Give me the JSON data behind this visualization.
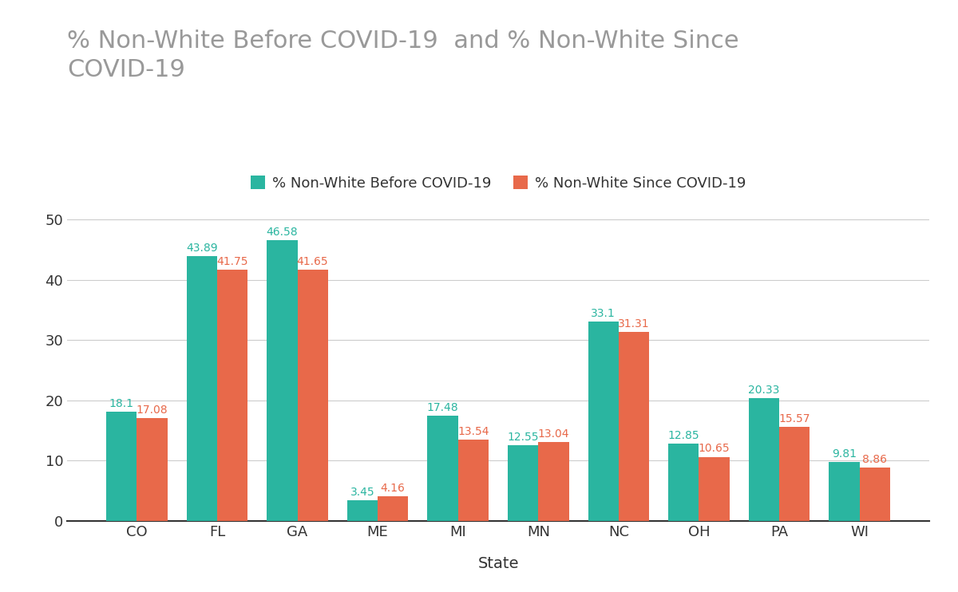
{
  "title": "% Non-White Before COVID-19  and % Non-White Since\nCOVID-19",
  "xlabel": "State",
  "ylabel": "",
  "categories": [
    "CO",
    "FL",
    "GA",
    "ME",
    "MI",
    "MN",
    "NC",
    "OH",
    "PA",
    "WI"
  ],
  "before": [
    18.1,
    43.89,
    46.58,
    3.45,
    17.48,
    12.55,
    33.1,
    12.85,
    20.33,
    9.81
  ],
  "since": [
    17.08,
    41.75,
    41.65,
    4.16,
    13.54,
    13.04,
    31.31,
    10.65,
    15.57,
    8.86
  ],
  "color_before": "#2ab5a0",
  "color_since": "#e8694a",
  "legend_before": "% Non-White Before COVID-19",
  "legend_since": "% Non-White Since COVID-19",
  "ylim": [
    0,
    55
  ],
  "yticks": [
    0,
    10,
    20,
    30,
    40,
    50
  ],
  "background_color": "#ffffff",
  "title_color": "#999999",
  "label_color_before": "#2ab5a0",
  "label_color_since": "#e8694a",
  "bar_width": 0.38,
  "title_fontsize": 22,
  "label_fontsize": 10,
  "tick_fontsize": 13,
  "xlabel_fontsize": 14,
  "legend_fontsize": 13,
  "legend_text_color": "#333333",
  "tick_color": "#333333",
  "xlabel_color": "#333333"
}
